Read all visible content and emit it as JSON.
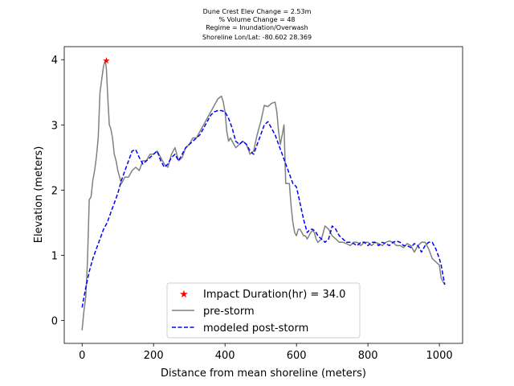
{
  "chart_data": {
    "type": "line",
    "title_lines": [
      "Dune Crest Elev Change = 2.53m",
      "% Volume Change = 48",
      "Regime = Inundation/Overwash",
      "Shoreline Lon/Lat: -80.602 28.369"
    ],
    "xlabel": "Distance from mean shoreline (meters)",
    "ylabel": "Elevation (meters)",
    "xlim": [
      -50,
      1065
    ],
    "ylim": [
      -0.35,
      4.2
    ],
    "xticks": [
      0,
      200,
      400,
      600,
      800,
      1000
    ],
    "yticks": [
      0,
      1,
      2,
      3,
      4
    ],
    "grid": false,
    "legend_position": "lower-center",
    "legend": [
      "Impact Duration(hr) = 34.0",
      "pre-storm",
      "modeled post-storm"
    ],
    "colors": {
      "pre_storm": "#808080",
      "post_storm": "#0000ff",
      "marker": "#ff0000"
    },
    "marker": {
      "x": 68,
      "y": 3.99
    },
    "series": [
      {
        "name": "pre-storm",
        "x": [
          0,
          5,
          10,
          15,
          20,
          25,
          30,
          35,
          40,
          45,
          50,
          55,
          60,
          65,
          68,
          72,
          76,
          80,
          85,
          90,
          95,
          100,
          110,
          120,
          130,
          140,
          150,
          160,
          170,
          180,
          190,
          200,
          210,
          220,
          230,
          240,
          250,
          260,
          270,
          280,
          290,
          300,
          310,
          320,
          330,
          340,
          350,
          360,
          370,
          380,
          390,
          395,
          400,
          405,
          410,
          415,
          420,
          425,
          430,
          440,
          450,
          460,
          470,
          480,
          490,
          500,
          510,
          520,
          530,
          540,
          545,
          550,
          555,
          560,
          565,
          570,
          580,
          585,
          590,
          595,
          600,
          605,
          610,
          615,
          620,
          625,
          630,
          635,
          640,
          645,
          650,
          655,
          660,
          670,
          680,
          690,
          700,
          710,
          720,
          730,
          740,
          750,
          760,
          770,
          780,
          790,
          800,
          810,
          820,
          830,
          840,
          850,
          860,
          870,
          880,
          890,
          900,
          910,
          920,
          930,
          940,
          950,
          960,
          970,
          980,
          990,
          1000,
          1005,
          1010,
          1015
        ],
        "values": [
          -0.15,
          0.15,
          0.35,
          0.9,
          1.85,
          1.9,
          2.15,
          2.3,
          2.5,
          2.8,
          3.5,
          3.7,
          3.9,
          3.99,
          3.85,
          3.4,
          3.0,
          2.95,
          2.8,
          2.55,
          2.45,
          2.3,
          2.1,
          2.2,
          2.2,
          2.3,
          2.35,
          2.3,
          2.45,
          2.45,
          2.55,
          2.55,
          2.6,
          2.5,
          2.4,
          2.35,
          2.55,
          2.65,
          2.45,
          2.5,
          2.65,
          2.7,
          2.8,
          2.8,
          2.9,
          3.0,
          3.1,
          3.2,
          3.3,
          3.4,
          3.44,
          3.35,
          3.2,
          2.9,
          2.75,
          2.8,
          2.75,
          2.7,
          2.65,
          2.7,
          2.75,
          2.7,
          2.55,
          2.6,
          2.85,
          3.05,
          3.3,
          3.28,
          3.33,
          3.35,
          3.2,
          2.9,
          2.7,
          2.85,
          3.0,
          2.1,
          2.1,
          1.75,
          1.5,
          1.35,
          1.3,
          1.4,
          1.4,
          1.35,
          1.3,
          1.3,
          1.25,
          1.3,
          1.35,
          1.38,
          1.35,
          1.25,
          1.2,
          1.25,
          1.45,
          1.4,
          1.3,
          1.25,
          1.2,
          1.2,
          1.18,
          1.15,
          1.2,
          1.2,
          1.15,
          1.2,
          1.2,
          1.15,
          1.2,
          1.18,
          1.15,
          1.2,
          1.22,
          1.2,
          1.15,
          1.15,
          1.12,
          1.18,
          1.15,
          1.05,
          1.15,
          1.2,
          1.2,
          1.1,
          0.95,
          0.9,
          0.85,
          0.65,
          0.6,
          0.55
        ]
      },
      {
        "name": "modeled post-storm",
        "x": [
          0,
          10,
          20,
          30,
          40,
          50,
          60,
          70,
          80,
          90,
          100,
          110,
          120,
          130,
          140,
          150,
          160,
          170,
          180,
          190,
          200,
          210,
          220,
          230,
          240,
          250,
          260,
          270,
          280,
          290,
          300,
          310,
          320,
          330,
          340,
          350,
          360,
          370,
          380,
          390,
          400,
          410,
          420,
          425,
          430,
          440,
          450,
          460,
          470,
          480,
          490,
          500,
          510,
          520,
          530,
          540,
          550,
          560,
          570,
          580,
          590,
          600,
          610,
          620,
          630,
          635,
          640,
          645,
          650,
          655,
          660,
          670,
          680,
          690,
          700,
          710,
          720,
          730,
          740,
          750,
          760,
          770,
          780,
          790,
          800,
          810,
          820,
          830,
          840,
          850,
          860,
          870,
          880,
          890,
          900,
          910,
          920,
          930,
          940,
          950,
          960,
          970,
          980,
          990,
          1000,
          1005,
          1010,
          1015
        ],
        "values": [
          0.2,
          0.5,
          0.75,
          0.95,
          1.1,
          1.25,
          1.4,
          1.5,
          1.65,
          1.8,
          1.95,
          2.15,
          2.3,
          2.45,
          2.6,
          2.62,
          2.5,
          2.4,
          2.45,
          2.5,
          2.55,
          2.6,
          2.45,
          2.35,
          2.4,
          2.5,
          2.55,
          2.45,
          2.55,
          2.65,
          2.7,
          2.75,
          2.8,
          2.85,
          2.95,
          3.05,
          3.15,
          3.2,
          3.22,
          3.22,
          3.2,
          3.1,
          2.95,
          2.85,
          2.75,
          2.7,
          2.75,
          2.7,
          2.6,
          2.55,
          2.7,
          2.85,
          3.0,
          3.05,
          2.95,
          2.85,
          2.7,
          2.55,
          2.4,
          2.25,
          2.1,
          2.05,
          1.8,
          1.55,
          1.35,
          1.38,
          1.4,
          1.4,
          1.38,
          1.35,
          1.3,
          1.25,
          1.2,
          1.25,
          1.45,
          1.4,
          1.3,
          1.25,
          1.2,
          1.2,
          1.18,
          1.15,
          1.2,
          1.2,
          1.15,
          1.2,
          1.2,
          1.15,
          1.2,
          1.18,
          1.15,
          1.2,
          1.22,
          1.2,
          1.15,
          1.15,
          1.12,
          1.18,
          1.15,
          1.05,
          1.15,
          1.2,
          1.2,
          1.1,
          0.95,
          0.85,
          0.7,
          0.55
        ]
      }
    ]
  }
}
